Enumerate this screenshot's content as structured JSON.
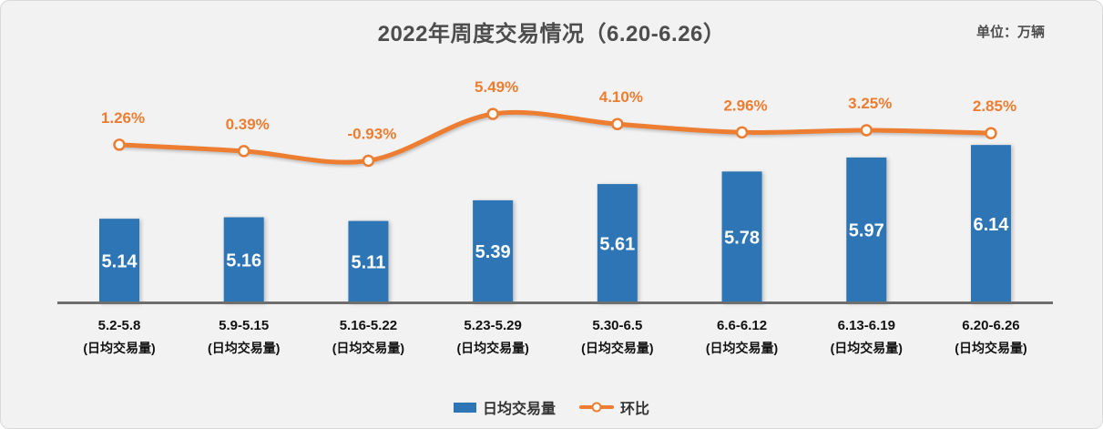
{
  "header": {
    "title": "2022年周度交易情况（6.20-6.26）",
    "unit_label": "单位：万辆"
  },
  "chart_data": {
    "type": "combo",
    "title": "2022年周度交易情况（6.20-6.26）",
    "unit": "万辆",
    "categories": [
      "5.2-5.8",
      "5.9-5.15",
      "5.16-5.22",
      "5.23-5.29",
      "5.30-6.5",
      "6.6-6.12",
      "6.13-6.19",
      "6.20-6.26"
    ],
    "category_sublabel": "(日均交易量)",
    "series": [
      {
        "name": "日均交易量",
        "type": "bar",
        "values": [
          5.14,
          5.16,
          5.11,
          5.39,
          5.61,
          5.78,
          5.97,
          6.14
        ],
        "labels": [
          "5.14",
          "5.16",
          "5.11",
          "5.39",
          "5.61",
          "5.78",
          "5.97",
          "6.14"
        ],
        "color": "#2e75b6",
        "label_color": "#ffffff",
        "axis_min": 4.0
      },
      {
        "name": "环比",
        "type": "line",
        "values": [
          1.26,
          0.39,
          -0.93,
          5.49,
          4.1,
          2.96,
          3.25,
          2.85
        ],
        "labels": [
          "1.26%",
          "0.39%",
          "-0.93%",
          "5.49%",
          "4.10%",
          "2.96%",
          "3.25%",
          "2.85%"
        ],
        "color": "#ed7d31",
        "marker_fill": "#ffffff",
        "smooth": true
      }
    ],
    "axis_color": "#6e6e6e",
    "background_color": "#f2f2f2",
    "grid": false,
    "legend_position": "bottom"
  },
  "legend": {
    "bar_label": "日均交易量",
    "line_label": "环比"
  }
}
